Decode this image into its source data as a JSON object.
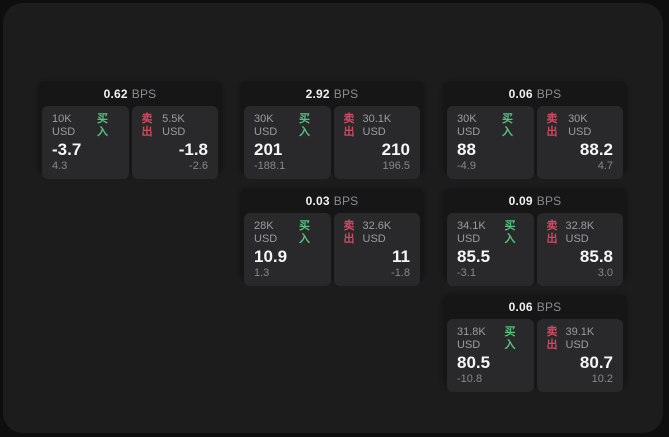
{
  "labels": {
    "bps_unit": "BPS",
    "buy": "买入",
    "sell": "卖出"
  },
  "colors": {
    "buy_green": "#54c37f",
    "sell_red": "#cf4960",
    "panel_bg": "#29292b",
    "card_bg": "#161617",
    "container_bg": "#1c1c1d",
    "page_bg": "#0e0e0f"
  },
  "cards": [
    {
      "bps": "0.62",
      "buy": {
        "amount": "10K USD",
        "value": "-3.7",
        "delta": "4.3"
      },
      "sell": {
        "amount": "5.5K USD",
        "value": "-1.8",
        "delta": "-2.6"
      }
    },
    {
      "bps": "2.92",
      "buy": {
        "amount": "30K USD",
        "value": "201",
        "delta": "-188.1"
      },
      "sell": {
        "amount": "30.1K USD",
        "value": "210",
        "delta": "196.5"
      }
    },
    {
      "bps": "0.06",
      "buy": {
        "amount": "30K USD",
        "value": "88",
        "delta": "-4.9"
      },
      "sell": {
        "amount": "30K USD",
        "value": "88.2",
        "delta": "4.7"
      }
    },
    {
      "bps": "0.03",
      "buy": {
        "amount": "28K USD",
        "value": "10.9",
        "delta": "1.3"
      },
      "sell": {
        "amount": "32.6K USD",
        "value": "11",
        "delta": "-1.8"
      }
    },
    {
      "bps": "0.09",
      "buy": {
        "amount": "34.1K USD",
        "value": "85.5",
        "delta": "-3.1"
      },
      "sell": {
        "amount": "32.8K USD",
        "value": "85.8",
        "delta": "3.0"
      }
    },
    {
      "bps": "0.06",
      "buy": {
        "amount": "31.8K USD",
        "value": "80.5",
        "delta": "-10.8"
      },
      "sell": {
        "amount": "39.1K USD",
        "value": "80.7",
        "delta": "10.2"
      }
    }
  ]
}
